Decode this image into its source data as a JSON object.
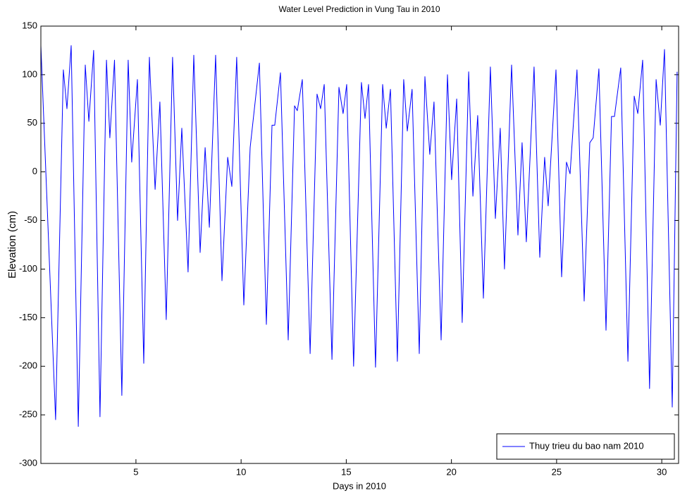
{
  "chart_data": {
    "type": "line",
    "title": "Water Level Prediction in Vung Tau in 2010",
    "xlabel": "Days in 2010",
    "ylabel": "Elevation (cm)",
    "x": [
      0.48,
      1.18,
      1.55,
      1.72,
      1.92,
      2.26,
      2.59,
      2.76,
      2.99,
      3.29,
      3.6,
      3.76,
      3.98,
      4.33,
      4.63,
      4.8,
      5.07,
      5.37,
      5.64,
      5.91,
      6.14,
      6.44,
      6.74,
      6.98,
      7.18,
      7.48,
      7.75,
      8.05,
      8.29,
      8.49,
      8.79,
      9.09,
      9.36,
      9.56,
      9.79,
      10.13,
      10.43,
      10.87,
      11.2,
      11.47,
      11.6,
      11.87,
      12.24,
      12.54,
      12.67,
      12.91,
      13.28,
      13.61,
      13.78,
      13.95,
      14.32,
      14.65,
      14.85,
      15.02,
      15.35,
      15.72,
      15.89,
      16.06,
      16.39,
      16.73,
      16.9,
      17.1,
      17.43,
      17.73,
      17.9,
      18.13,
      18.47,
      18.74,
      18.97,
      19.17,
      19.51,
      19.81,
      20.01,
      20.25,
      20.51,
      20.82,
      21.02,
      21.25,
      21.52,
      21.85,
      22.09,
      22.32,
      22.52,
      22.86,
      23.16,
      23.36,
      23.56,
      23.93,
      24.2,
      24.43,
      24.6,
      24.97,
      25.24,
      25.47,
      25.64,
      25.97,
      26.31,
      26.58,
      26.74,
      27.01,
      27.35,
      27.61,
      27.75,
      28.05,
      28.39,
      28.69,
      28.86,
      29.09,
      29.42,
      29.73,
      29.93,
      30.13,
      30.5,
      30.73
    ],
    "series": [
      {
        "name": "Thuy trieu du bao nam 2010",
        "color": "#0000ff",
        "values": [
          130,
          -255,
          105,
          65,
          130,
          -262,
          110,
          52,
          125,
          -252,
          115,
          35,
          115,
          -230,
          115,
          10,
          95,
          -197,
          118,
          -18,
          72,
          -152,
          118,
          -50,
          45,
          -103,
          120,
          -83,
          25,
          -57,
          120,
          -112,
          15,
          -15,
          118,
          -137,
          25,
          112,
          -157,
          48,
          48,
          102,
          -173,
          68,
          63,
          95,
          -187,
          80,
          65,
          90,
          -193,
          87,
          60,
          90,
          -200,
          92,
          55,
          90,
          -201,
          90,
          45,
          85,
          -195,
          95,
          42,
          85,
          -187,
          98,
          18,
          72,
          -173,
          100,
          -8,
          75,
          -155,
          103,
          -25,
          58,
          -130,
          108,
          -48,
          45,
          -100,
          110,
          -65,
          30,
          -72,
          108,
          -88,
          15,
          -35,
          105,
          -108,
          10,
          -2,
          105,
          -133,
          30,
          35,
          106,
          -163,
          57,
          57,
          107,
          -195,
          78,
          60,
          115,
          -223,
          95,
          48,
          126,
          -242,
          103
        ]
      }
    ],
    "xlim": [
      0.48,
      30.8
    ],
    "ylim": [
      -300,
      150
    ],
    "xticks": [
      5,
      10,
      15,
      20,
      25,
      30
    ],
    "yticks": [
      -300,
      -250,
      -200,
      -150,
      -100,
      -50,
      0,
      50,
      100,
      150
    ],
    "legend": "southeast"
  }
}
